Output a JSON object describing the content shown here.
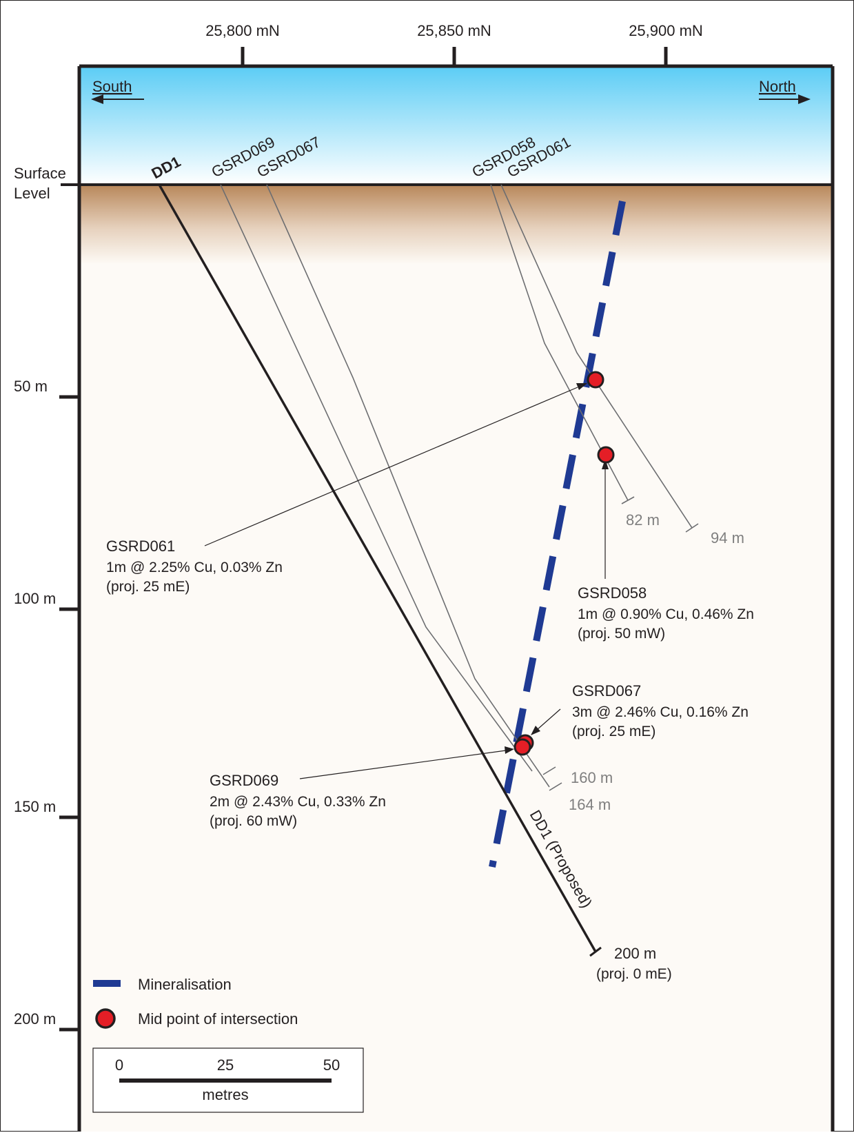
{
  "northings": {
    "left": "25,800 mN",
    "middle": "25,850 mN",
    "right": "25,900 mN"
  },
  "directions": {
    "south": "South",
    "north": "North"
  },
  "surface_label": [
    "Surface",
    "Level"
  ],
  "depth_ticks": [
    "50 m",
    "100 m",
    "150 m",
    "200 m"
  ],
  "holes": {
    "dd1": "DD1",
    "dd1_proposed": "DD1 (Proposed)",
    "gsrd069": "GSRD069",
    "gsrd067": "GSRD067",
    "gsrd058": "GSRD058",
    "gsrd061": "GSRD061"
  },
  "end_depths": {
    "gsrd058": "82 m",
    "gsrd061": "94 m",
    "gsrd067": "160 m",
    "gsrd069": "164 m",
    "dd1": "200 m",
    "dd1_proj": "(proj. 0 mE)"
  },
  "intersections": {
    "gsrd061": {
      "hole": "GSRD061",
      "result": "1m @ 2.25% Cu, 0.03% Zn",
      "proj": "(proj. 25 mE)"
    },
    "gsrd058": {
      "hole": "GSRD058",
      "result": "1m @ 0.90% Cu, 0.46% Zn",
      "proj": "(proj. 50 mW)"
    },
    "gsrd067": {
      "hole": "GSRD067",
      "result": "3m @ 2.46% Cu, 0.16% Zn",
      "proj": "(proj. 25 mE)"
    },
    "gsrd069": {
      "hole": "GSRD069",
      "result": "2m @ 2.43% Cu, 0.33% Zn",
      "proj": "(proj. 60 mW)"
    }
  },
  "legend": {
    "mineralisation": "Mineralisation",
    "midpoint": "Mid point of intersection"
  },
  "scale_bar": {
    "ticks": [
      "0",
      "25",
      "50"
    ],
    "unit": "metres"
  },
  "colors": {
    "mineralisation": "#1f3a93",
    "intersection": "#e41e26",
    "sky_top": "#5dcdf5",
    "soil_top": "#b8875a"
  }
}
